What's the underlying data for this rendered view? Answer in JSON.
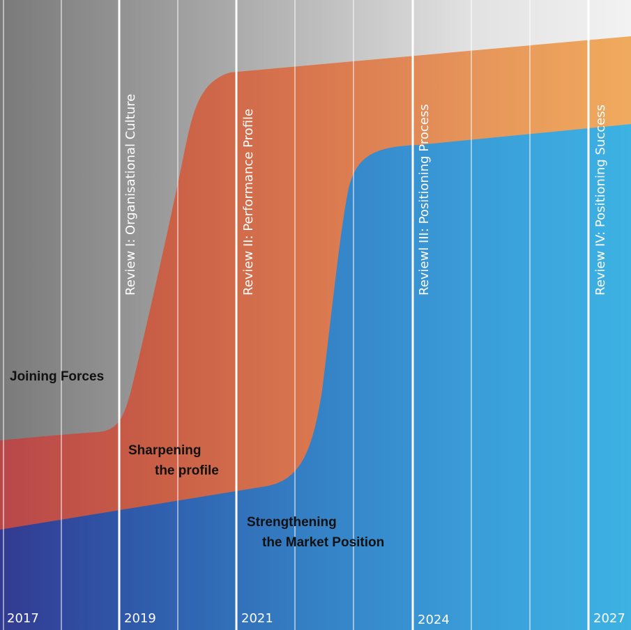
{
  "bands": {
    "gray": {
      "label": "Joining Forces",
      "colors": [
        "#7a7a7a",
        "#9a9a9a",
        "#bdbdbd",
        "#e2e2e2",
        "#f2f2f2"
      ]
    },
    "red": {
      "label_lines": [
        "Sharpening",
        "the profile"
      ],
      "colors": [
        "#b8474a",
        "#c95f46",
        "#d9774f",
        "#e6955a",
        "#f0aa5e"
      ]
    },
    "blue": {
      "label_lines": [
        "Strengthening",
        "the Market Position"
      ],
      "colors": [
        "#323a91",
        "#2f5fae",
        "#3581c6",
        "#3a9dd8",
        "#3db2e3"
      ]
    }
  },
  "reviews": [
    "Review I: Organisational Culture",
    "Review II: Performance Profile",
    "Reviewl III: Positioning Process",
    "Review IV: Positioning Success"
  ],
  "years": [
    "2017",
    "2019",
    "2021",
    "2024",
    "2027"
  ],
  "colors": {
    "divider": "#ffffff",
    "text_dark": "#111111",
    "text_light": "#ffffff"
  }
}
